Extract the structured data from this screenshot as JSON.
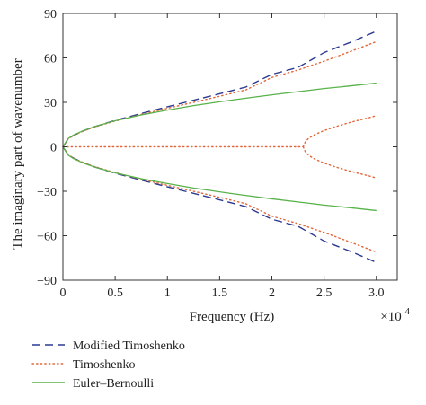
{
  "chart_data": {
    "type": "line",
    "title": "",
    "xlabel": "Frequency (Hz)",
    "ylabel": "The imaginary part of wavenumber",
    "x_multiplier_label": "×10",
    "x_multiplier_exponent": "4",
    "xlim": [
      0,
      3.2
    ],
    "ylim": [
      -90,
      90
    ],
    "xticks": [
      0,
      0.5,
      1,
      1.5,
      2,
      2.5,
      3
    ],
    "xtick_labels": [
      "0",
      "0.5",
      "1",
      "1.5",
      "2",
      "2.5",
      "3.0"
    ],
    "yticks": [
      -90,
      -60,
      -30,
      0,
      30,
      60,
      90
    ],
    "ytick_labels": [
      "−90",
      "−60",
      "−30",
      "0",
      "30",
      "60",
      "90"
    ],
    "grid": false,
    "legend_position": "below",
    "series": [
      {
        "name": "Modified Timoshenko",
        "color": "#2b3a8f",
        "style": "dashed",
        "branches": [
          {
            "x": [
              0,
              0.05,
              0.1,
              0.2,
              0.3,
              0.5,
              0.75,
              1.0,
              1.25,
              1.5,
              1.75,
              2.0,
              2.25,
              2.5,
              2.75,
              3.0
            ],
            "y": [
              0,
              5.3,
              7.6,
              10.9,
              13.5,
              17.8,
              22.5,
              27.0,
              31.4,
              35.8,
              40.3,
              48.9,
              53.6,
              63.6,
              70.5,
              78.0
            ]
          },
          {
            "x": [
              0,
              0.05,
              0.1,
              0.2,
              0.3,
              0.5,
              0.75,
              1.0,
              1.25,
              1.5,
              1.75,
              2.0,
              2.25,
              2.5,
              2.75,
              3.0
            ],
            "y": [
              0,
              -5.3,
              -7.6,
              -10.9,
              -13.5,
              -17.8,
              -22.5,
              -27.0,
              -31.4,
              -35.8,
              -40.3,
              -48.9,
              -53.6,
              -63.6,
              -70.5,
              -78.0
            ]
          }
        ]
      },
      {
        "name": "Timoshenko",
        "color": "#e2673a",
        "style": "dotted",
        "branches": [
          {
            "x": [
              0,
              0.05,
              0.1,
              0.2,
              0.3,
              0.5,
              0.75,
              1.0,
              1.25,
              1.5,
              1.75,
              2.0,
              2.25,
              2.5,
              2.75,
              3.0
            ],
            "y": [
              0,
              5.3,
              7.6,
              10.8,
              13.3,
              17.4,
              21.9,
              26.0,
              30.0,
              34.1,
              38.4,
              46.8,
              51.8,
              57.8,
              64.3,
              71.0
            ]
          },
          {
            "x": [
              0,
              0.05,
              0.1,
              0.2,
              0.3,
              0.5,
              0.75,
              1.0,
              1.25,
              1.5,
              1.75,
              2.0,
              2.25,
              2.5,
              2.75,
              3.0
            ],
            "y": [
              0,
              -5.3,
              -7.6,
              -10.8,
              -13.3,
              -17.4,
              -21.9,
              -26.0,
              -30.0,
              -34.1,
              -38.4,
              -46.8,
              -51.8,
              -57.8,
              -64.3,
              -71.0
            ]
          },
          {
            "x": [
              0,
              0.5,
              1.0,
              1.5,
              2.0,
              2.3
            ],
            "y": [
              0,
              0,
              0,
              0,
              0,
              0
            ]
          },
          {
            "x": [
              2.3,
              2.32,
              2.35,
              2.4,
              2.5,
              2.6,
              2.7,
              2.8,
              2.9,
              3.0
            ],
            "y": [
              0,
              3.3,
              5.6,
              7.9,
              11.0,
              13.4,
              15.5,
              17.4,
              19.1,
              21.0
            ]
          },
          {
            "x": [
              2.3,
              2.32,
              2.35,
              2.4,
              2.5,
              2.6,
              2.7,
              2.8,
              2.9,
              3.0
            ],
            "y": [
              0,
              -3.3,
              -5.6,
              -7.9,
              -11.0,
              -13.4,
              -15.5,
              -17.4,
              -19.1,
              -21.0
            ]
          }
        ]
      },
      {
        "name": "Euler–Bernoulli",
        "color": "#58b24a",
        "style": "solid",
        "branches": [
          {
            "x": [
              0,
              0.05,
              0.1,
              0.2,
              0.3,
              0.5,
              0.75,
              1.0,
              1.25,
              1.5,
              1.75,
              2.0,
              2.25,
              2.5,
              2.75,
              3.0
            ],
            "y": [
              0,
              5.6,
              7.9,
              11.1,
              13.6,
              17.6,
              21.5,
              24.8,
              27.8,
              30.4,
              32.8,
              35.1,
              37.2,
              39.3,
              41.1,
              43.0
            ]
          },
          {
            "x": [
              0,
              0.05,
              0.1,
              0.2,
              0.3,
              0.5,
              0.75,
              1.0,
              1.25,
              1.5,
              1.75,
              2.0,
              2.25,
              2.5,
              2.75,
              3.0
            ],
            "y": [
              0,
              -5.6,
              -7.9,
              -11.1,
              -13.6,
              -17.6,
              -21.5,
              -24.8,
              -27.8,
              -30.4,
              -32.8,
              -35.1,
              -37.2,
              -39.3,
              -41.1,
              -43.0
            ]
          }
        ]
      }
    ]
  }
}
